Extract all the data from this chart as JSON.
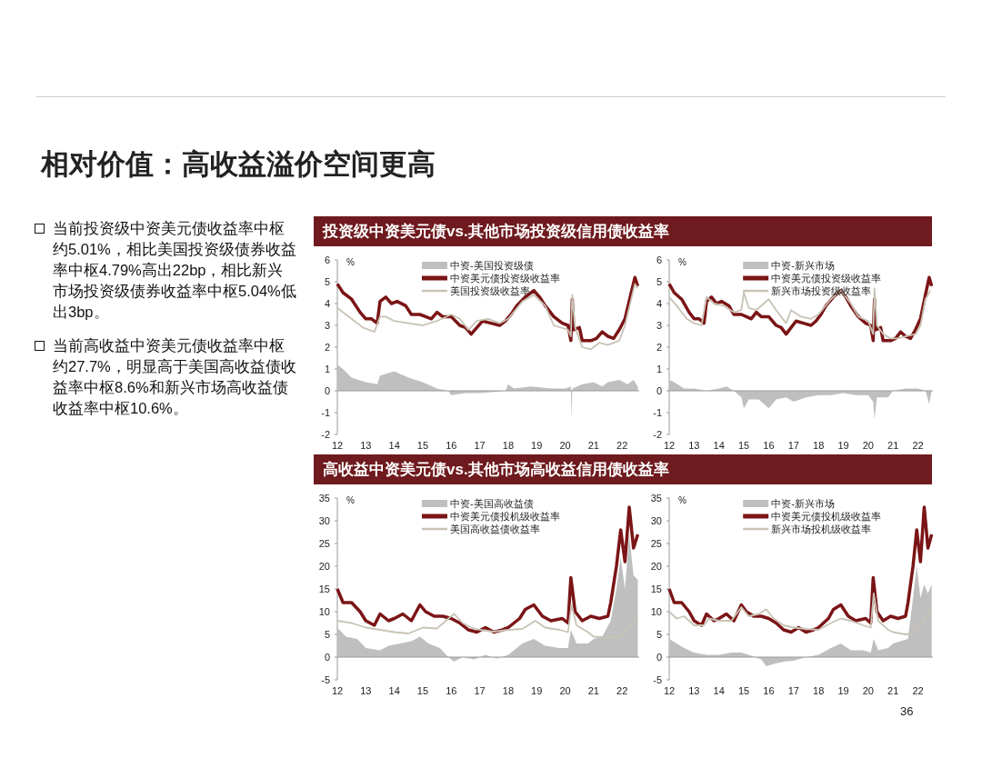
{
  "chart_data": [
    {
      "type": "other",
      "title": "相对价值：高收益溢价空间更高",
      "annotations": [
        "当前投资级中资美元债收益率中枢约5.01%，相比美国投资级债券收益率中枢4.79%高出22bp，相比新兴市场投资级债券收益率中枢5.04%低出3bp。",
        "当前高收益中资美元债收益率中枢约27.7%，明显高于美国高收益债收益率中枢8.6%和新兴市场高收益债收益率中枢10.6%。",
        "36"
      ]
    },
    {
      "type": "line",
      "title": "投资级中资美元债vs.其他市场投资级信用债收益率",
      "ylabel": "%",
      "legend": "top",
      "xlim": [
        2012,
        2022.6
      ],
      "xticks": [
        {
          "value": 2012,
          "label": "12"
        },
        {
          "value": 2013,
          "label": "13"
        },
        {
          "value": 2014,
          "label": "14"
        },
        {
          "value": 2015,
          "label": "15"
        },
        {
          "value": 2016,
          "label": "16"
        },
        {
          "value": 2017,
          "label": "17"
        },
        {
          "value": 2018,
          "label": "18"
        },
        {
          "value": 2019,
          "label": "19"
        },
        {
          "value": 2020,
          "label": "20"
        },
        {
          "value": 2021,
          "label": "21"
        },
        {
          "value": 2022,
          "label": "22"
        }
      ],
      "ylim": [
        -2,
        6
      ],
      "yticks": [
        -2,
        -1,
        0,
        1,
        2,
        3,
        4,
        5,
        6
      ],
      "series": [
        {
          "name": "中资-美国投资级债",
          "type": "area",
          "color": "#bfbfbf",
          "x": [
            2012.0,
            2012.2,
            2012.5,
            2013.0,
            2013.4,
            2013.5,
            2014.0,
            2014.5,
            2015.0,
            2015.5,
            2015.9,
            2016.0,
            2016.5,
            2017.0,
            2017.5,
            2017.9,
            2018.0,
            2018.2,
            2018.8,
            2019.5,
            2020.0,
            2020.2,
            2020.22,
            2020.25,
            2020.6,
            2021.0,
            2021.3,
            2021.5,
            2021.9,
            2022.2,
            2022.4,
            2022.55
          ],
          "values": [
            1.2,
            1.0,
            0.6,
            0.4,
            0.3,
            0.7,
            0.9,
            0.6,
            0.4,
            0.1,
            0.0,
            -0.2,
            -0.1,
            -0.1,
            -0.05,
            0.0,
            0.3,
            0.1,
            0.2,
            0.1,
            0.1,
            0.2,
            -1.3,
            0.1,
            0.3,
            0.4,
            0.2,
            0.4,
            0.5,
            0.3,
            0.5,
            0.2
          ]
        },
        {
          "name": "中资美元债投资级收益率",
          "type": "line",
          "color": "#7b1416",
          "x": [
            2012.0,
            2012.2,
            2012.5,
            2012.8,
            2013.0,
            2013.2,
            2013.4,
            2013.5,
            2013.7,
            2013.9,
            2014.1,
            2014.4,
            2014.6,
            2014.9,
            2015.1,
            2015.3,
            2015.5,
            2015.7,
            2016.0,
            2016.3,
            2016.5,
            2016.7,
            2016.9,
            2017.1,
            2017.4,
            2017.7,
            2017.9,
            2018.1,
            2018.3,
            2018.6,
            2018.9,
            2019.1,
            2019.3,
            2019.6,
            2019.9,
            2020.1,
            2020.2,
            2020.25,
            2020.3,
            2020.5,
            2020.6,
            2020.9,
            2021.1,
            2021.3,
            2021.5,
            2021.7,
            2021.9,
            2022.1,
            2022.3,
            2022.45,
            2022.55
          ],
          "values": [
            4.9,
            4.5,
            4.2,
            3.6,
            3.3,
            3.3,
            3.1,
            4.1,
            4.3,
            4.0,
            4.1,
            3.9,
            3.5,
            3.5,
            3.4,
            3.3,
            3.6,
            3.4,
            3.4,
            3.0,
            2.9,
            2.6,
            2.9,
            3.2,
            3.1,
            3.0,
            3.2,
            3.5,
            3.9,
            4.3,
            4.6,
            4.3,
            3.9,
            3.4,
            3.1,
            3.0,
            2.3,
            4.2,
            2.8,
            2.9,
            2.3,
            2.3,
            2.4,
            2.7,
            2.5,
            2.4,
            2.8,
            3.3,
            4.4,
            5.2,
            4.8
          ]
        },
        {
          "name": "美国投资级收益率",
          "type": "line",
          "color": "#c8c3b5",
          "x": [
            2012.0,
            2012.3,
            2012.6,
            2012.9,
            2013.3,
            2013.5,
            2013.7,
            2014.0,
            2014.5,
            2015.0,
            2015.5,
            2016.0,
            2016.3,
            2016.6,
            2016.9,
            2017.3,
            2017.7,
            2018.0,
            2018.5,
            2018.9,
            2019.3,
            2019.6,
            2020.1,
            2020.2,
            2020.25,
            2020.35,
            2020.6,
            2020.9,
            2021.2,
            2021.5,
            2021.9,
            2022.1,
            2022.3,
            2022.45,
            2022.55
          ],
          "values": [
            3.8,
            3.5,
            3.2,
            2.9,
            2.7,
            3.4,
            3.4,
            3.2,
            3.1,
            3.0,
            3.2,
            3.5,
            3.3,
            2.8,
            3.2,
            3.3,
            3.1,
            3.3,
            4.1,
            4.4,
            3.9,
            3.0,
            2.8,
            2.5,
            4.4,
            2.9,
            2.0,
            1.9,
            2.2,
            2.1,
            2.3,
            3.0,
            4.1,
            4.9,
            4.7
          ]
        }
      ]
    },
    {
      "type": "line",
      "ylabel": "%",
      "legend": "top",
      "xlim": [
        2012,
        2022.6
      ],
      "xticks": [
        {
          "value": 2012,
          "label": "12"
        },
        {
          "value": 2013,
          "label": "13"
        },
        {
          "value": 2014,
          "label": "14"
        },
        {
          "value": 2015,
          "label": "15"
        },
        {
          "value": 2016,
          "label": "16"
        },
        {
          "value": 2017,
          "label": "17"
        },
        {
          "value": 2018,
          "label": "18"
        },
        {
          "value": 2019,
          "label": "19"
        },
        {
          "value": 2020,
          "label": "20"
        },
        {
          "value": 2021,
          "label": "21"
        },
        {
          "value": 2022,
          "label": "22"
        }
      ],
      "ylim": [
        -2,
        6
      ],
      "yticks": [
        -2,
        -1,
        0,
        1,
        2,
        3,
        4,
        5,
        6
      ],
      "series": [
        {
          "name": "中资-新兴市场",
          "type": "area",
          "color": "#bfbfbf",
          "x": [
            2012.0,
            2012.2,
            2012.6,
            2013.0,
            2013.5,
            2014.0,
            2014.3,
            2014.6,
            2014.9,
            2015.0,
            2015.2,
            2015.6,
            2016.0,
            2016.3,
            2016.7,
            2017.0,
            2017.5,
            2018.0,
            2018.5,
            2019.0,
            2019.5,
            2020.0,
            2020.2,
            2020.25,
            2020.35,
            2020.8,
            2021.0,
            2021.5,
            2022.0,
            2022.3,
            2022.45,
            2022.55
          ],
          "values": [
            0.5,
            0.4,
            0.1,
            0.1,
            0.0,
            0.1,
            0.2,
            0.0,
            -0.3,
            -0.8,
            -0.4,
            -0.4,
            -0.8,
            -0.4,
            -0.3,
            -0.5,
            -0.3,
            -0.2,
            -0.2,
            -0.1,
            -0.2,
            -0.2,
            -0.5,
            -1.3,
            -0.3,
            -0.3,
            0.0,
            0.1,
            0.1,
            0.0,
            -0.6,
            0.0
          ]
        },
        {
          "name": "中资美元债投资级收益率",
          "type": "line",
          "color": "#7b1416",
          "x": [
            2012.0,
            2012.2,
            2012.5,
            2012.8,
            2013.0,
            2013.2,
            2013.4,
            2013.5,
            2013.7,
            2013.9,
            2014.1,
            2014.4,
            2014.6,
            2014.9,
            2015.1,
            2015.3,
            2015.5,
            2015.7,
            2016.0,
            2016.3,
            2016.5,
            2016.7,
            2016.9,
            2017.1,
            2017.4,
            2017.7,
            2017.9,
            2018.1,
            2018.3,
            2018.6,
            2018.9,
            2019.1,
            2019.3,
            2019.6,
            2019.9,
            2020.1,
            2020.2,
            2020.25,
            2020.3,
            2020.5,
            2020.6,
            2020.9,
            2021.1,
            2021.3,
            2021.5,
            2021.7,
            2021.9,
            2022.1,
            2022.3,
            2022.45,
            2022.55
          ],
          "values": [
            4.9,
            4.5,
            4.2,
            3.6,
            3.3,
            3.3,
            3.1,
            4.1,
            4.3,
            4.0,
            4.1,
            3.9,
            3.5,
            3.5,
            3.4,
            3.3,
            3.6,
            3.4,
            3.4,
            3.0,
            2.9,
            2.6,
            2.9,
            3.2,
            3.1,
            3.0,
            3.2,
            3.5,
            3.9,
            4.3,
            4.6,
            4.3,
            3.9,
            3.4,
            3.1,
            3.0,
            2.3,
            4.2,
            2.8,
            2.9,
            2.3,
            2.3,
            2.4,
            2.7,
            2.5,
            2.4,
            2.8,
            3.3,
            4.4,
            5.2,
            4.8
          ]
        },
        {
          "name": "新兴市场投资级收益率",
          "type": "line",
          "color": "#c8c3b5",
          "x": [
            2012.0,
            2012.3,
            2012.7,
            2013.0,
            2013.3,
            2013.5,
            2013.8,
            2014.2,
            2014.6,
            2014.9,
            2015.0,
            2015.2,
            2015.5,
            2015.8,
            2016.0,
            2016.3,
            2016.7,
            2016.9,
            2017.3,
            2017.7,
            2018.0,
            2018.5,
            2018.9,
            2019.3,
            2019.6,
            2020.0,
            2020.2,
            2020.25,
            2020.35,
            2020.6,
            2020.9,
            2021.2,
            2021.5,
            2021.9,
            2022.1,
            2022.3,
            2022.5
          ],
          "values": [
            4.3,
            3.9,
            3.3,
            3.1,
            3.0,
            4.3,
            4.0,
            3.9,
            3.6,
            3.7,
            4.5,
            3.8,
            3.7,
            4.0,
            4.2,
            3.7,
            3.1,
            3.7,
            3.4,
            3.3,
            3.5,
            4.2,
            4.6,
            4.0,
            3.4,
            3.2,
            2.6,
            4.7,
            3.0,
            2.6,
            2.4,
            2.4,
            2.5,
            2.6,
            3.0,
            4.2,
            4.6
          ]
        }
      ]
    },
    {
      "type": "line",
      "title": "高收益中资美元债vs.其他市场高收益信用债收益率",
      "ylabel": "%",
      "legend": "top",
      "xlim": [
        2012,
        2022.6
      ],
      "xticks": [
        {
          "value": 2012,
          "label": "12"
        },
        {
          "value": 2013,
          "label": "13"
        },
        {
          "value": 2014,
          "label": "14"
        },
        {
          "value": 2015,
          "label": "15"
        },
        {
          "value": 2016,
          "label": "16"
        },
        {
          "value": 2017,
          "label": "17"
        },
        {
          "value": 2018,
          "label": "18"
        },
        {
          "value": 2019,
          "label": "19"
        },
        {
          "value": 2020,
          "label": "20"
        },
        {
          "value": 2021,
          "label": "21"
        },
        {
          "value": 2022,
          "label": "22"
        }
      ],
      "ylim": [
        -5,
        35
      ],
      "yticks": [
        -5,
        0,
        5,
        10,
        15,
        20,
        25,
        30,
        35
      ],
      "series": [
        {
          "name": "中资-美国高收益债",
          "type": "area",
          "color": "#bfbfbf",
          "x": [
            2012.0,
            2012.3,
            2012.7,
            2013.0,
            2013.5,
            2013.8,
            2014.2,
            2014.6,
            2014.9,
            2015.2,
            2015.6,
            2015.9,
            2016.1,
            2016.4,
            2016.8,
            2017.2,
            2017.6,
            2018.0,
            2018.5,
            2018.9,
            2019.3,
            2019.8,
            2020.1,
            2020.2,
            2020.4,
            2020.8,
            2021.0,
            2021.3,
            2021.6,
            2021.8,
            2021.95,
            2022.1,
            2022.25,
            2022.4,
            2022.55
          ],
          "values": [
            6.5,
            4.5,
            4,
            2,
            1.5,
            2.5,
            3,
            3.5,
            4.5,
            3,
            2,
            0,
            -1,
            0,
            -0.5,
            0.5,
            -0.3,
            0.5,
            3,
            4,
            2.5,
            2,
            2,
            6,
            3,
            3,
            4,
            4.5,
            8,
            15,
            22,
            15,
            27,
            18,
            17
          ]
        },
        {
          "name": "中资美元债投机级收益率",
          "type": "line",
          "color": "#7b1416",
          "x": [
            2012.0,
            2012.2,
            2012.5,
            2012.8,
            2013.0,
            2013.3,
            2013.5,
            2013.8,
            2014.0,
            2014.3,
            2014.6,
            2014.9,
            2015.1,
            2015.4,
            2015.7,
            2016.0,
            2016.3,
            2016.6,
            2016.9,
            2017.2,
            2017.5,
            2017.8,
            2018.0,
            2018.4,
            2018.6,
            2018.9,
            2019.2,
            2019.5,
            2019.9,
            2020.1,
            2020.2,
            2020.35,
            2020.6,
            2020.9,
            2021.2,
            2021.5,
            2021.6,
            2021.8,
            2021.95,
            2022.1,
            2022.25,
            2022.4,
            2022.55
          ],
          "values": [
            15,
            12,
            12,
            10,
            8,
            7,
            9.5,
            8,
            8.5,
            9.5,
            8,
            11.5,
            10,
            9,
            9,
            8.5,
            7.5,
            6,
            5.5,
            6.5,
            5.5,
            6,
            6.5,
            8.5,
            10.5,
            11.5,
            9,
            8,
            8.5,
            7.5,
            17.5,
            10,
            8,
            9,
            8.5,
            9,
            12,
            20,
            28,
            21,
            33,
            24,
            27
          ]
        },
        {
          "name": "美国高收益债收益率",
          "type": "line",
          "color": "#c8c3b5",
          "x": [
            2012.0,
            2012.5,
            2013.0,
            2013.5,
            2014.0,
            2014.5,
            2015.0,
            2015.5,
            2015.9,
            2016.1,
            2016.4,
            2016.7,
            2017.0,
            2017.5,
            2018.0,
            2018.5,
            2018.95,
            2019.3,
            2019.8,
            2020.1,
            2020.22,
            2020.4,
            2020.8,
            2021.0,
            2021.5,
            2021.9,
            2022.2,
            2022.55
          ],
          "values": [
            8,
            7.5,
            6.5,
            6,
            5.5,
            5.2,
            6.5,
            6.3,
            8.5,
            9.5,
            7.5,
            6.5,
            6,
            5.6,
            6,
            6.2,
            8,
            6.5,
            6,
            5.5,
            11.5,
            7,
            5.5,
            4.5,
            4.3,
            4.5,
            6,
            8.5
          ]
        }
      ]
    },
    {
      "type": "line",
      "ylabel": "%",
      "legend": "top",
      "xlim": [
        2012,
        2022.6
      ],
      "xticks": [
        {
          "value": 2012,
          "label": "12"
        },
        {
          "value": 2013,
          "label": "13"
        },
        {
          "value": 2014,
          "label": "14"
        },
        {
          "value": 2015,
          "label": "15"
        },
        {
          "value": 2016,
          "label": "16"
        },
        {
          "value": 2017,
          "label": "17"
        },
        {
          "value": 2018,
          "label": "18"
        },
        {
          "value": 2019,
          "label": "19"
        },
        {
          "value": 2020,
          "label": "20"
        },
        {
          "value": 2021,
          "label": "21"
        },
        {
          "value": 2022,
          "label": "22"
        }
      ],
      "ylim": [
        -5,
        35
      ],
      "yticks": [
        -5,
        0,
        5,
        10,
        15,
        20,
        25,
        30,
        35
      ],
      "series": [
        {
          "name": "中资-新兴市场",
          "type": "area",
          "color": "#bfbfbf",
          "x": [
            2012.0,
            2012.3,
            2012.6,
            2013.0,
            2013.5,
            2014.0,
            2014.5,
            2014.9,
            2015.2,
            2015.7,
            2015.9,
            2016.2,
            2016.6,
            2017.0,
            2017.5,
            2018.0,
            2018.5,
            2018.9,
            2019.3,
            2019.8,
            2020.1,
            2020.22,
            2020.4,
            2020.8,
            2021.0,
            2021.3,
            2021.6,
            2021.8,
            2021.95,
            2022.1,
            2022.25,
            2022.4,
            2022.55
          ],
          "values": [
            4,
            3,
            2,
            1,
            0.5,
            0.5,
            1,
            1,
            0.5,
            -0.5,
            -2,
            -1.5,
            -1,
            -0.8,
            0,
            0.5,
            2,
            3,
            1.5,
            1.5,
            1,
            4,
            1.5,
            2,
            3,
            3.5,
            4,
            13,
            20,
            13,
            16,
            14,
            16
          ]
        },
        {
          "name": "中资美元债投机级收益率",
          "type": "line",
          "color": "#7b1416",
          "x": [
            2012.0,
            2012.2,
            2012.5,
            2012.8,
            2013.0,
            2013.3,
            2013.5,
            2013.8,
            2014.0,
            2014.3,
            2014.6,
            2014.9,
            2015.1,
            2015.4,
            2015.7,
            2016.0,
            2016.3,
            2016.6,
            2016.9,
            2017.2,
            2017.5,
            2017.8,
            2018.0,
            2018.4,
            2018.6,
            2018.9,
            2019.2,
            2019.5,
            2019.9,
            2020.1,
            2020.2,
            2020.35,
            2020.6,
            2020.9,
            2021.2,
            2021.5,
            2021.6,
            2021.8,
            2021.95,
            2022.1,
            2022.25,
            2022.4,
            2022.55
          ],
          "values": [
            15,
            12,
            12,
            10,
            8,
            7,
            9.5,
            8,
            8.5,
            9.5,
            8,
            11.5,
            10,
            9,
            9,
            8.5,
            7.5,
            6,
            5.5,
            6.5,
            5.5,
            6,
            6.5,
            8.5,
            10.5,
            11.5,
            9,
            8,
            8.5,
            7.5,
            17.5,
            10,
            8,
            9,
            8.5,
            9,
            12,
            20,
            28,
            21,
            33,
            24,
            27
          ]
        },
        {
          "name": "新兴市场投机级收益率",
          "type": "line",
          "color": "#c8c3b5",
          "x": [
            2012.0,
            2012.3,
            2012.6,
            2013.0,
            2013.4,
            2013.6,
            2014.0,
            2014.5,
            2014.9,
            2015.2,
            2015.6,
            2015.9,
            2016.2,
            2016.6,
            2017.0,
            2017.5,
            2018.0,
            2018.5,
            2018.9,
            2019.3,
            2019.8,
            2020.1,
            2020.22,
            2020.4,
            2020.8,
            2021.0,
            2021.5,
            2021.8,
            2022.1,
            2022.3,
            2022.55
          ],
          "values": [
            10,
            8.5,
            9,
            7,
            7,
            8.5,
            8,
            8,
            11,
            9,
            9.5,
            10.5,
            8.5,
            7,
            6.5,
            6.2,
            6,
            7.5,
            8.5,
            8,
            7,
            6.5,
            14,
            8,
            6,
            5.5,
            5,
            5.3,
            7,
            9,
            10.5
          ]
        }
      ]
    }
  ]
}
